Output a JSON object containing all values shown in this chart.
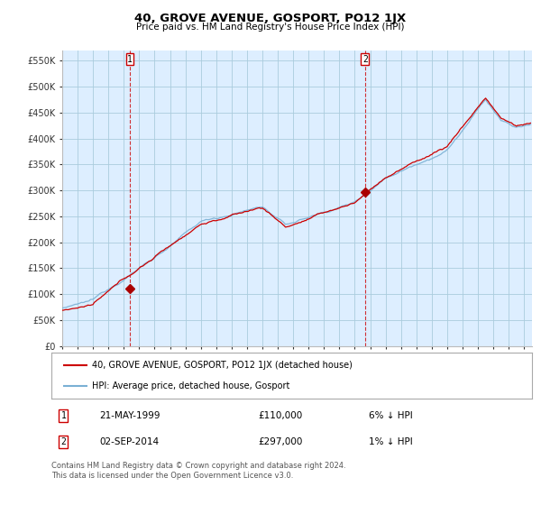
{
  "title": "40, GROVE AVENUE, GOSPORT, PO12 1JX",
  "subtitle": "Price paid vs. HM Land Registry's House Price Index (HPI)",
  "ylabel_ticks": [
    "£0",
    "£50K",
    "£100K",
    "£150K",
    "£200K",
    "£250K",
    "£300K",
    "£350K",
    "£400K",
    "£450K",
    "£500K",
    "£550K"
  ],
  "ytick_values": [
    0,
    50000,
    100000,
    150000,
    200000,
    250000,
    300000,
    350000,
    400000,
    450000,
    500000,
    550000
  ],
  "ylim": [
    0,
    570000
  ],
  "xlim_start": 1995.0,
  "xlim_end": 2025.5,
  "sale1_x": 1999.388,
  "sale1_y": 110000,
  "sale2_x": 2014.671,
  "sale2_y": 297000,
  "hpi_color": "#7ab0d4",
  "price_color": "#cc0000",
  "marker_color": "#aa0000",
  "annotation_color": "#cc0000",
  "chart_bg": "#ddeeff",
  "background_color": "#ffffff",
  "grid_color": "#aaccdd",
  "legend_label_price": "40, GROVE AVENUE, GOSPORT, PO12 1JX (detached house)",
  "legend_label_hpi": "HPI: Average price, detached house, Gosport",
  "note1_label": "1",
  "note1_date": "21-MAY-1999",
  "note1_price": "£110,000",
  "note1_hpi": "6% ↓ HPI",
  "note2_label": "2",
  "note2_date": "02-SEP-2014",
  "note2_price": "£297,000",
  "note2_hpi": "1% ↓ HPI",
  "footer": "Contains HM Land Registry data © Crown copyright and database right 2024.\nThis data is licensed under the Open Government Licence v3.0."
}
